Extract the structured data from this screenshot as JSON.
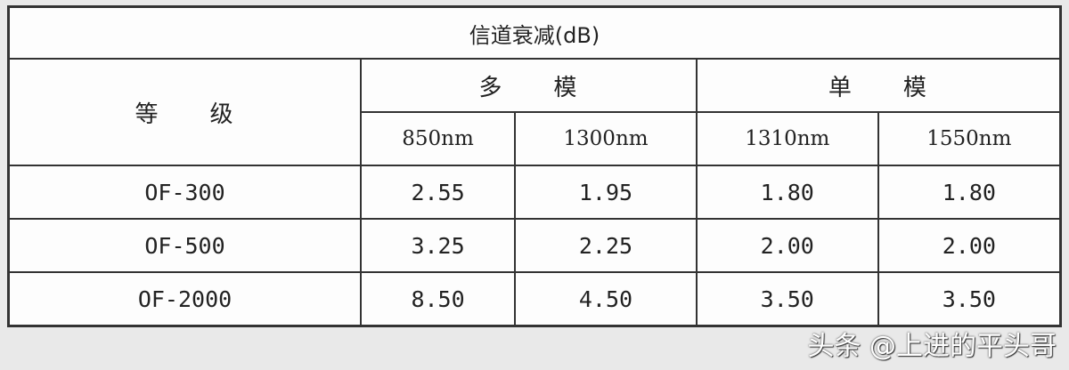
{
  "table": {
    "title": "信道衰减(dB)",
    "grade_header": "等　　级",
    "groups": [
      "多　　模",
      "单　　模"
    ],
    "wavelengths": [
      "850nm",
      "1300nm",
      "1310nm",
      "1550nm"
    ],
    "rows": [
      {
        "grade": "OF-300",
        "values": [
          "2.55",
          "1.95",
          "1.80",
          "1.80"
        ]
      },
      {
        "grade": "OF-500",
        "values": [
          "3.25",
          "2.25",
          "2.00",
          "2.00"
        ]
      },
      {
        "grade": "OF-2000",
        "values": [
          "8.50",
          "4.50",
          "3.50",
          "3.50"
        ]
      }
    ]
  },
  "watermark": "头条 @上进的平头哥"
}
